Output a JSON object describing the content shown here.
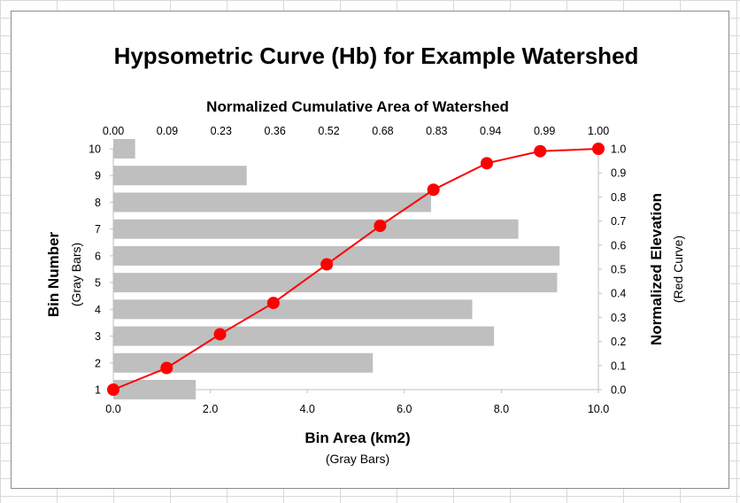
{
  "chart_data": {
    "type": "bar",
    "title": "Hypsometric Curve (Hb) for Example Watershed",
    "bars": {
      "orientation": "horizontal",
      "name": "Gray Bars",
      "color": "#bfbfbf",
      "categories": [
        "1",
        "2",
        "3",
        "4",
        "5",
        "6",
        "7",
        "8",
        "9",
        "10"
      ],
      "values": [
        1.7,
        5.35,
        7.85,
        7.4,
        9.15,
        9.2,
        8.35,
        6.55,
        2.75,
        0.45
      ]
    },
    "curve": {
      "type": "line",
      "name": "Red Curve",
      "color": "#ff0000",
      "x": [
        0.0,
        1.1,
        2.2,
        3.3,
        4.4,
        5.5,
        6.6,
        7.7,
        8.8,
        10.0
      ],
      "y": [
        0.0,
        0.09,
        0.23,
        0.36,
        0.52,
        0.68,
        0.83,
        0.94,
        0.99,
        1.0
      ]
    },
    "axes": {
      "x_bottom": {
        "label": "Bin Area (km2)",
        "sublabel": "(Gray Bars)",
        "range": [
          0,
          10
        ],
        "ticks": [
          "0.0",
          "2.0",
          "4.0",
          "6.0",
          "8.0",
          "10.0"
        ]
      },
      "x_top": {
        "label": "Normalized Cumulative Area of Watershed",
        "ticks": [
          "0.00",
          "0.09",
          "0.23",
          "0.36",
          "0.52",
          "0.68",
          "0.83",
          "0.94",
          "0.99",
          "1.00"
        ]
      },
      "y_left": {
        "label": "Bin Number",
        "sublabel": "(Gray Bars)",
        "range": [
          1,
          10
        ],
        "ticks": [
          "1",
          "2",
          "3",
          "4",
          "5",
          "6",
          "7",
          "8",
          "9",
          "10"
        ]
      },
      "y_right": {
        "label": "Normalized Elevation",
        "sublabel": "(Red Curve)",
        "range": [
          0,
          1
        ],
        "ticks": [
          "0.0",
          "0.1",
          "0.2",
          "0.3",
          "0.4",
          "0.5",
          "0.6",
          "0.7",
          "0.8",
          "0.9",
          "1.0"
        ]
      }
    },
    "grid": false,
    "legend": "none"
  }
}
